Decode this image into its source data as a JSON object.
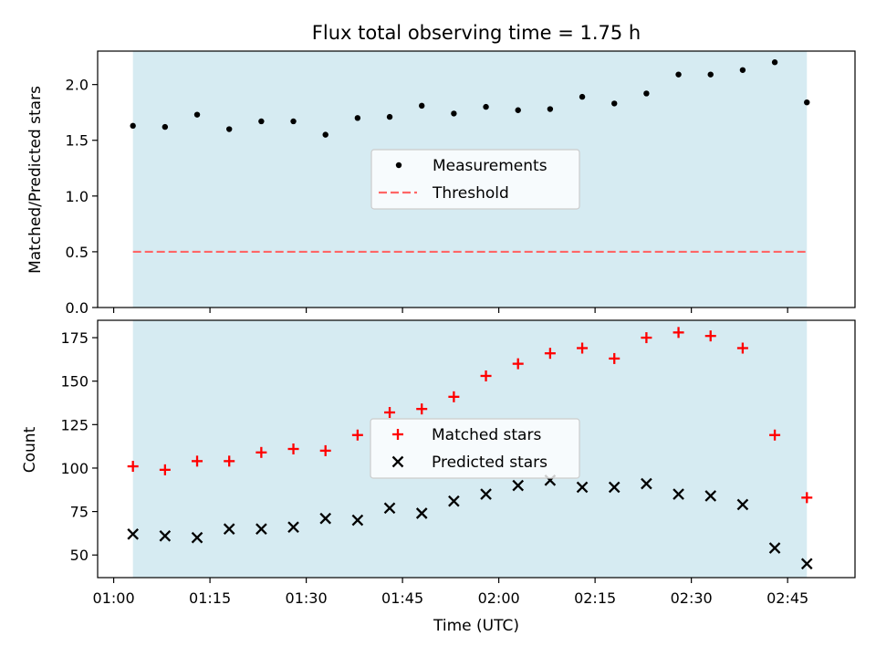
{
  "figure_title": "Flux total observing time = 1.75 h",
  "colors": {
    "span_fill": "#add8e6",
    "measurement": "#000000",
    "threshold": "#ff6666",
    "matched": "#ff0000",
    "predicted": "#000000"
  },
  "chart_data": [
    {
      "type": "scatter",
      "panel": "top",
      "ylabel": "Matched/Predicted stars",
      "ylim": [
        0,
        2.3
      ],
      "yticks": [
        "0.0",
        "0.5",
        "1.0",
        "1.5",
        "2.0"
      ],
      "xlim_minutes_after_01_00": [
        -2.5,
        115.5
      ],
      "shaded_span": [
        "01:03",
        "02:48"
      ],
      "grid": false,
      "legend_position": "center",
      "series": [
        {
          "name": "Measurements",
          "marker": "dot",
          "x": [
            "01:03",
            "01:08",
            "01:13",
            "01:18",
            "01:23",
            "01:28",
            "01:33",
            "01:38",
            "01:43",
            "01:48",
            "01:53",
            "01:58",
            "02:03",
            "02:08",
            "02:13",
            "02:18",
            "02:23",
            "02:28",
            "02:33",
            "02:38",
            "02:43",
            "02:48"
          ],
          "y": [
            1.63,
            1.62,
            1.73,
            1.6,
            1.67,
            1.67,
            1.55,
            1.7,
            1.71,
            1.81,
            1.74,
            1.8,
            1.77,
            1.78,
            1.89,
            1.83,
            1.92,
            2.09,
            2.09,
            2.13,
            2.2,
            1.84
          ]
        }
      ],
      "reference_lines": [
        {
          "name": "Threshold",
          "y": 0.5,
          "x_range": [
            "01:03",
            "02:48"
          ],
          "style": "dashed"
        }
      ]
    },
    {
      "type": "scatter",
      "panel": "bottom",
      "xlabel": "Time (UTC)",
      "ylabel": "Count",
      "ylim": [
        37,
        185
      ],
      "yticks": [
        "50",
        "75",
        "100",
        "125",
        "150",
        "175"
      ],
      "xticks": [
        "01:00",
        "01:15",
        "01:30",
        "01:45",
        "02:00",
        "02:15",
        "02:30",
        "02:45"
      ],
      "xlim_minutes_after_01_00": [
        -2.5,
        115.5
      ],
      "shaded_span": [
        "01:03",
        "02:48"
      ],
      "grid": false,
      "legend_position": "center",
      "series": [
        {
          "name": "Matched stars",
          "marker": "plus",
          "x": [
            "01:03",
            "01:08",
            "01:13",
            "01:18",
            "01:23",
            "01:28",
            "01:33",
            "01:38",
            "01:43",
            "01:48",
            "01:53",
            "01:58",
            "02:03",
            "02:08",
            "02:13",
            "02:18",
            "02:23",
            "02:28",
            "02:33",
            "02:38",
            "02:43",
            "02:48"
          ],
          "y": [
            101,
            99,
            104,
            104,
            109,
            111,
            110,
            119,
            132,
            134,
            141,
            153,
            160,
            166,
            169,
            163,
            175,
            178,
            176,
            169,
            119,
            83
          ]
        },
        {
          "name": "Predicted stars",
          "marker": "x",
          "x": [
            "01:03",
            "01:08",
            "01:13",
            "01:18",
            "01:23",
            "01:28",
            "01:33",
            "01:38",
            "01:43",
            "01:48",
            "01:53",
            "01:58",
            "02:03",
            "02:08",
            "02:13",
            "02:18",
            "02:23",
            "02:28",
            "02:33",
            "02:38",
            "02:43",
            "02:48"
          ],
          "y": [
            62,
            61,
            60,
            65,
            65,
            66,
            71,
            70,
            77,
            74,
            81,
            85,
            90,
            93,
            89,
            89,
            91,
            85,
            84,
            79,
            54,
            45
          ]
        }
      ]
    }
  ]
}
